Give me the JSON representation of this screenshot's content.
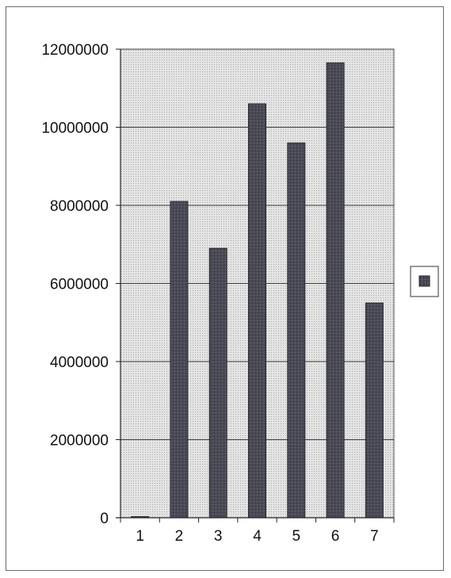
{
  "chart_data": {
    "type": "bar",
    "categories": [
      "1",
      "2",
      "3",
      "4",
      "5",
      "6",
      "7"
    ],
    "series": [
      {
        "values": [
          30000,
          8100000,
          6900000,
          10600000,
          9600000,
          11650000,
          5500000
        ]
      }
    ],
    "yticks": [
      "0",
      "2000000",
      "4000000",
      "6000000",
      "8000000",
      "10000000",
      "12000000"
    ],
    "ylim": [
      0,
      12000000
    ],
    "title": "",
    "xlabel": "",
    "ylabel": "",
    "grid": true,
    "legend": "right",
    "colors": {
      "bar": "#4a4a56",
      "plot_background": "#dcdcdc",
      "gridline": "#3a3a3a",
      "axis": "#222222"
    }
  }
}
